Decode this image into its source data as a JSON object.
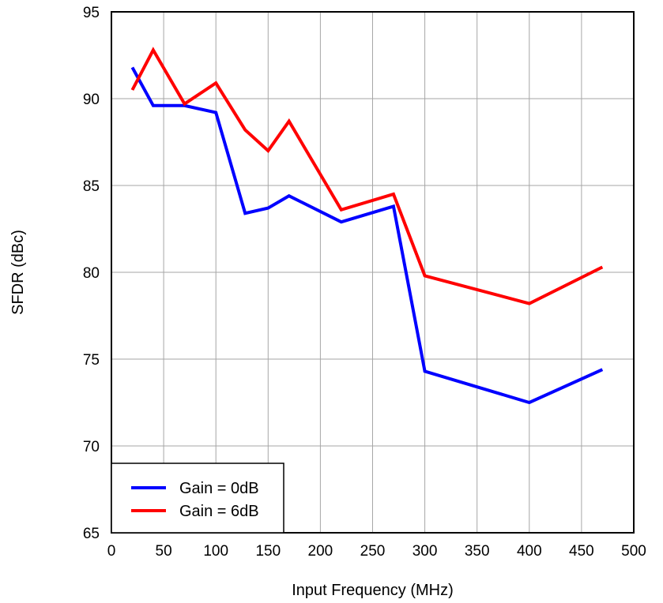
{
  "chart_data": {
    "type": "line",
    "title": "",
    "xlabel": "Input Frequency (MHz)",
    "ylabel": "SFDR (dBc)",
    "xlim": [
      0,
      500
    ],
    "ylim": [
      65,
      95
    ],
    "xticks": [
      0,
      50,
      100,
      150,
      200,
      250,
      300,
      350,
      400,
      450,
      500
    ],
    "yticks": [
      65,
      70,
      75,
      80,
      85,
      90,
      95
    ],
    "grid": true,
    "legend_position": "bottom-left",
    "series": [
      {
        "name": "Gain = 0dB",
        "color": "#0000ff",
        "points": [
          [
            20,
            91.8
          ],
          [
            40,
            89.6
          ],
          [
            70,
            89.6
          ],
          [
            100,
            89.2
          ],
          [
            128,
            83.4
          ],
          [
            150,
            83.7
          ],
          [
            170,
            84.4
          ],
          [
            220,
            82.9
          ],
          [
            270,
            83.8
          ],
          [
            300,
            74.3
          ],
          [
            400,
            72.5
          ],
          [
            470,
            74.4
          ]
        ]
      },
      {
        "name": "Gain = 6dB",
        "color": "#ff0000",
        "points": [
          [
            20,
            90.5
          ],
          [
            40,
            92.8
          ],
          [
            70,
            89.7
          ],
          [
            100,
            90.9
          ],
          [
            128,
            88.2
          ],
          [
            150,
            87.0
          ],
          [
            170,
            88.7
          ],
          [
            220,
            83.6
          ],
          [
            270,
            84.5
          ],
          [
            300,
            79.8
          ],
          [
            400,
            78.2
          ],
          [
            470,
            80.3
          ]
        ]
      }
    ]
  }
}
